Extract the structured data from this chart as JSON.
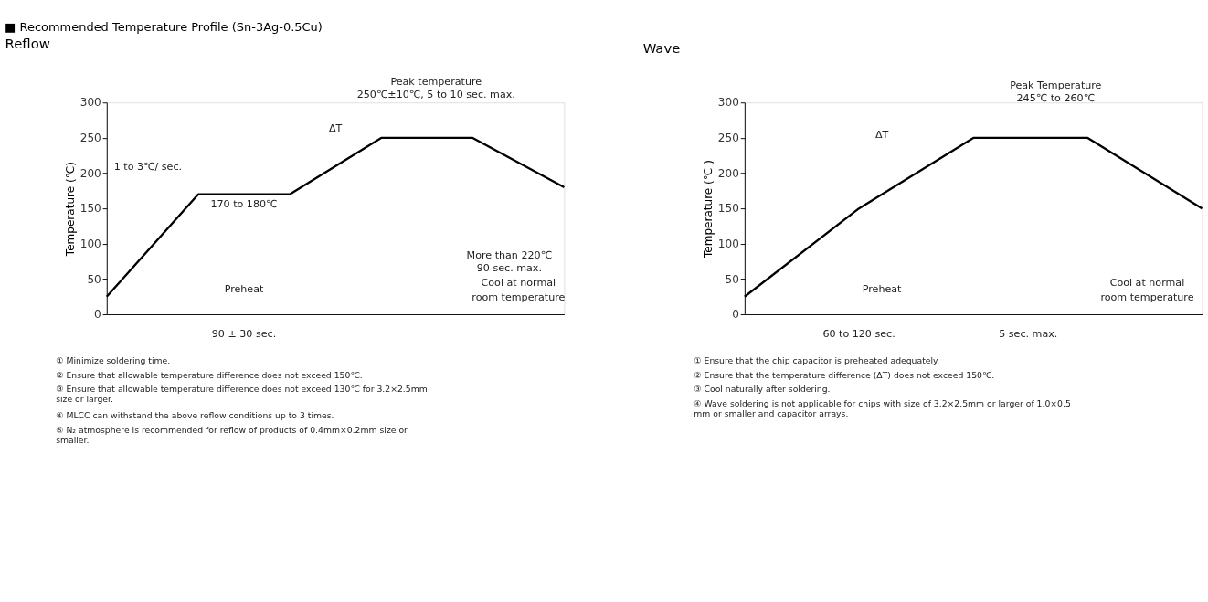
{
  "chart_data": [
    {
      "type": "line",
      "title": "■ Recommended Temperature Profile (Sn-3Ag-0.5Cu)",
      "subtitle": "Reflow",
      "ylabel": "Temperature (℃)",
      "categories": [
        null,
        null,
        null,
        null,
        null,
        null
      ],
      "values": [
        25,
        170,
        170,
        250,
        250,
        180
      ],
      "color": "#000000",
      "ylim": [
        0,
        300
      ],
      "yticks": [
        0,
        50,
        100,
        150,
        200,
        250,
        300
      ],
      "tick_labels": "y",
      "grid": false,
      "legend": false,
      "annotations": [
        "Peak temperature",
        "250℃±10℃, 5 to 10 sec. max.",
        "ΔT",
        "1 to 3℃/ sec.",
        "170 to 180℃",
        "More than 220℃",
        "90 sec. max.",
        "Preheat",
        "Cool at normal",
        "room temperature",
        "90 ± 30 sec.",
        "① Minimize soldering time.",
        "② Ensure that allowable temperature difference does not exceed 150℃.",
        "③ Ensure that allowable temperature difference does not exceed 130℃ for 3.2×2.5mm\n size  or larger.",
        "④ MLCC can withstand the above reflow conditions up to 3 times.",
        "⑤ N₂ atmosphere is recommended for reflow of products of 0.4mm×0.2mm size or\nsmaller."
      ]
    },
    {
      "type": "line",
      "title": "Wave",
      "ylabel": "Temperature (℃ )",
      "categories": [
        null,
        null,
        null,
        null,
        null
      ],
      "values": [
        25,
        150,
        250,
        250,
        150
      ],
      "color": "#000000",
      "ylim": [
        0,
        300
      ],
      "yticks": [
        0,
        50,
        100,
        150,
        200,
        250,
        300
      ],
      "tick_labels": "y",
      "grid": false,
      "legend": false,
      "annotations": [
        "Peak Temperature",
        "245℃ to 260℃",
        "ΔT",
        "Preheat",
        "Cool at normal",
        "room temperature",
        "60  to  120 sec.",
        "5 sec. max.",
        "① Ensure that the chip capacitor is preheated adequately.",
        "② Ensure that the temperature difference (ΔT) does not exceed 150℃.",
        "③ Cool naturally after soldering.",
        "④ Wave soldering is not applicable for chips with size of 3.2×2.5mm or larger of 1.0×0.5\n   mm or smaller  and capacitor arrays."
      ]
    }
  ]
}
